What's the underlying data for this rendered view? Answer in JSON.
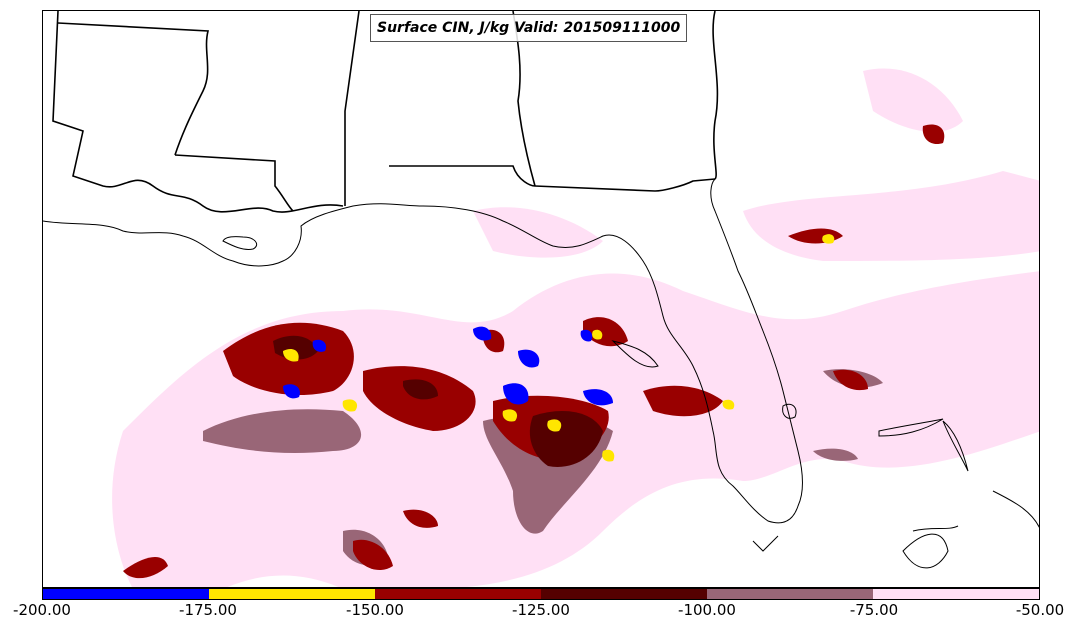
{
  "title": "Surface CIN, J/kg Valid: 201509111000",
  "colorbar": {
    "colors": [
      "#0000ff",
      "#ffe600",
      "#990000",
      "#550000",
      "#996677",
      "#ffe0f5"
    ],
    "labels": [
      "-200.00",
      "-175.00",
      "-150.00",
      "-125.00",
      "-100.00",
      "-75.00",
      "-50.00"
    ]
  }
}
